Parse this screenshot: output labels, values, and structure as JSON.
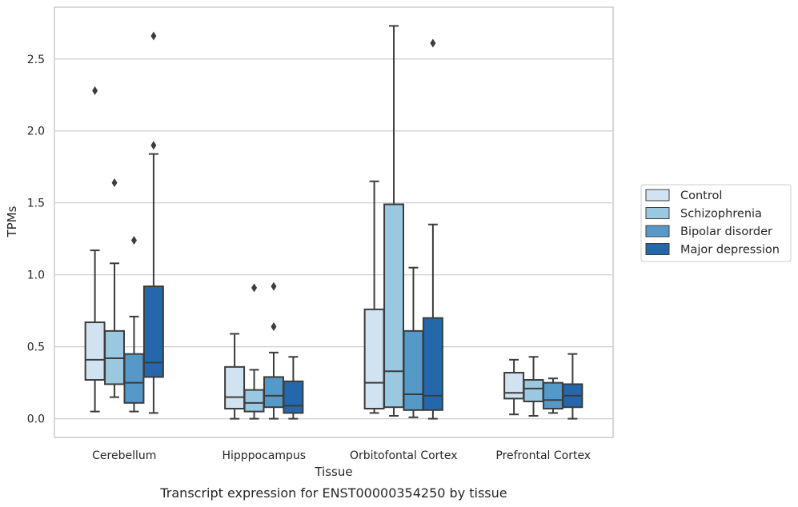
{
  "chart_data": {
    "type": "box",
    "title": "",
    "xlabel": "Tissue",
    "ylabel": "TPMs",
    "caption": "Transcript expression for ENST00000354250 by tissue",
    "ylim": [
      -0.13,
      2.86
    ],
    "yticks": [
      0.0,
      0.5,
      1.0,
      1.5,
      2.0,
      2.5
    ],
    "ytick_labels": [
      "0.0",
      "0.5",
      "1.0",
      "1.5",
      "2.0",
      "2.5"
    ],
    "grid": true,
    "legend_position": "right",
    "categories": [
      "Cerebellum",
      "Hipppocampus",
      "Orbitofontal Cortex",
      "Prefrontal Cortex"
    ],
    "series": [
      {
        "name": "Control",
        "color": "#d1e2f1",
        "boxes": [
          {
            "whisker_low": 0.05,
            "q1": 0.27,
            "median": 0.41,
            "q3": 0.67,
            "whisker_high": 1.17,
            "outliers": [
              2.28
            ]
          },
          {
            "whisker_low": 0.0,
            "q1": 0.07,
            "median": 0.15,
            "q3": 0.36,
            "whisker_high": 0.59,
            "outliers": []
          },
          {
            "whisker_low": 0.04,
            "q1": 0.07,
            "median": 0.25,
            "q3": 0.76,
            "whisker_high": 1.65,
            "outliers": []
          },
          {
            "whisker_low": 0.03,
            "q1": 0.14,
            "median": 0.18,
            "q3": 0.32,
            "whisker_high": 0.41,
            "outliers": []
          }
        ]
      },
      {
        "name": "Schizophrenia",
        "color": "#9ac8e0",
        "boxes": [
          {
            "whisker_low": 0.15,
            "q1": 0.24,
            "median": 0.42,
            "q3": 0.61,
            "whisker_high": 1.08,
            "outliers": [
              1.64
            ]
          },
          {
            "whisker_low": 0.0,
            "q1": 0.05,
            "median": 0.11,
            "q3": 0.2,
            "whisker_high": 0.34,
            "outliers": [
              0.91
            ]
          },
          {
            "whisker_low": 0.02,
            "q1": 0.08,
            "median": 0.33,
            "q3": 1.49,
            "whisker_high": 2.73,
            "outliers": []
          },
          {
            "whisker_low": 0.02,
            "q1": 0.12,
            "median": 0.21,
            "q3": 0.27,
            "whisker_high": 0.43,
            "outliers": []
          }
        ]
      },
      {
        "name": "Bipolar disorder",
        "color": "#5599c8",
        "boxes": [
          {
            "whisker_low": 0.05,
            "q1": 0.11,
            "median": 0.25,
            "q3": 0.45,
            "whisker_high": 0.71,
            "outliers": [
              1.24
            ]
          },
          {
            "whisker_low": 0.0,
            "q1": 0.08,
            "median": 0.16,
            "q3": 0.29,
            "whisker_high": 0.46,
            "outliers": [
              0.64,
              0.92
            ]
          },
          {
            "whisker_low": 0.01,
            "q1": 0.06,
            "median": 0.17,
            "q3": 0.61,
            "whisker_high": 1.05,
            "outliers": []
          },
          {
            "whisker_low": 0.04,
            "q1": 0.07,
            "median": 0.13,
            "q3": 0.25,
            "whisker_high": 0.28,
            "outliers": []
          }
        ]
      },
      {
        "name": "Major depression",
        "color": "#2467ab",
        "boxes": [
          {
            "whisker_low": 0.04,
            "q1": 0.29,
            "median": 0.39,
            "q3": 0.92,
            "whisker_high": 1.84,
            "outliers": [
              1.9,
              2.66
            ]
          },
          {
            "whisker_low": 0.0,
            "q1": 0.04,
            "median": 0.09,
            "q3": 0.26,
            "whisker_high": 0.43,
            "outliers": []
          },
          {
            "whisker_low": 0.0,
            "q1": 0.06,
            "median": 0.16,
            "q3": 0.7,
            "whisker_high": 1.35,
            "outliers": [
              2.61
            ]
          },
          {
            "whisker_low": 0.0,
            "q1": 0.08,
            "median": 0.16,
            "q3": 0.24,
            "whisker_high": 0.45,
            "outliers": []
          }
        ]
      }
    ]
  }
}
